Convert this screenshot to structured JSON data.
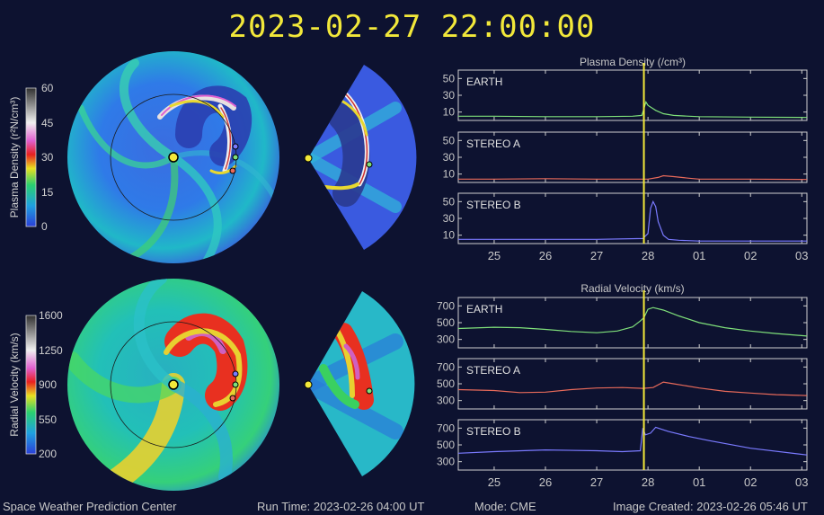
{
  "header": {
    "timestamp": "2023-02-27  22:00:00"
  },
  "footer": {
    "org": "Space Weather Prediction Center",
    "run_time": "Run Time: 2023-02-26 04:00 UT",
    "mode": "Mode: CME",
    "image_created": "Image Created: 2023-02-26 05:46 UT"
  },
  "colors": {
    "earth": "#7fe07a",
    "stereo_a": "#e86a5a",
    "stereo_b": "#7a7aff",
    "marker": "#f2e83a",
    "frame": "#cfcfcf"
  },
  "colorbars": [
    {
      "label": "Plasma Density (r²N/cm³)",
      "ticks": [
        "60",
        "45",
        "30",
        "15",
        "0"
      ],
      "min": 0,
      "max": 60
    },
    {
      "label": "Radial Velocity (km/s)",
      "ticks": [
        "1600",
        "1250",
        "900",
        "550",
        "200"
      ],
      "min": 200,
      "max": 1600
    }
  ],
  "chart_data": [
    {
      "type": "line",
      "title": "Plasma Density (/cm³)",
      "x_ticks": [
        "25",
        "26",
        "27",
        "28",
        "01",
        "02",
        "03"
      ],
      "x_tick_values": [
        25,
        26,
        27,
        28,
        29,
        30,
        31
      ],
      "xlim": [
        24.3,
        31.1
      ],
      "current_time": 27.92,
      "panels": [
        {
          "name": "EARTH",
          "color": "#7fe07a",
          "yticks": [
            "50",
            "30",
            "10"
          ],
          "ytick_values": [
            50,
            30,
            10
          ],
          "ylim": [
            0,
            60
          ],
          "x": [
            24.3,
            25,
            26,
            27,
            27.7,
            27.88,
            27.92,
            27.96,
            28.0,
            28.05,
            28.15,
            28.3,
            28.5,
            28.8,
            29,
            30,
            31.1
          ],
          "y": [
            5,
            5,
            4.5,
            4.5,
            5,
            6,
            14,
            22,
            18,
            16,
            12,
            8,
            6,
            5,
            4.5,
            4,
            3.5
          ]
        },
        {
          "name": "STEREO A",
          "color": "#e86a5a",
          "yticks": [
            "50",
            "30",
            "10"
          ],
          "ytick_values": [
            50,
            30,
            10
          ],
          "ylim": [
            0,
            60
          ],
          "x": [
            24.3,
            25,
            26,
            27,
            27.8,
            28.0,
            28.2,
            28.3,
            28.5,
            28.8,
            29,
            30,
            31.1
          ],
          "y": [
            4,
            4,
            4.5,
            4,
            4,
            4,
            6,
            8,
            7,
            5,
            4,
            4,
            3.5
          ]
        },
        {
          "name": "STEREO B",
          "color": "#7a7aff",
          "yticks": [
            "50",
            "30",
            "10"
          ],
          "ytick_values": [
            50,
            30,
            10
          ],
          "ylim": [
            0,
            60
          ],
          "x": [
            24.3,
            25,
            26,
            27,
            27.9,
            28.0,
            28.05,
            28.1,
            28.15,
            28.2,
            28.3,
            28.4,
            28.6,
            29,
            30,
            31.1
          ],
          "y": [
            5,
            5,
            5,
            5,
            6,
            12,
            42,
            50,
            44,
            26,
            10,
            5,
            4,
            3,
            3,
            3
          ]
        }
      ]
    },
    {
      "type": "line",
      "title": "Radial Velocity (km/s)",
      "x_ticks": [
        "25",
        "26",
        "27",
        "28",
        "01",
        "02",
        "03"
      ],
      "x_tick_values": [
        25,
        26,
        27,
        28,
        29,
        30,
        31
      ],
      "xlim": [
        24.3,
        31.1
      ],
      "current_time": 27.92,
      "panels": [
        {
          "name": "EARTH",
          "color": "#7fe07a",
          "yticks": [
            "700",
            "500",
            "300"
          ],
          "ytick_values": [
            700,
            500,
            300
          ],
          "ylim": [
            200,
            800
          ],
          "x": [
            24.3,
            25,
            25.5,
            26,
            26.5,
            27,
            27.4,
            27.7,
            27.85,
            27.92,
            28.0,
            28.1,
            28.3,
            28.6,
            29,
            29.5,
            30,
            30.5,
            31.1
          ],
          "y": [
            430,
            445,
            440,
            420,
            395,
            380,
            400,
            450,
            520,
            560,
            660,
            680,
            650,
            580,
            500,
            440,
            400,
            370,
            340
          ]
        },
        {
          "name": "STEREO A",
          "color": "#e86a5a",
          "yticks": [
            "700",
            "500",
            "300"
          ],
          "ytick_values": [
            700,
            500,
            300
          ],
          "ylim": [
            200,
            800
          ],
          "x": [
            24.3,
            25,
            25.5,
            26,
            26.5,
            27,
            27.5,
            27.9,
            28.1,
            28.3,
            28.5,
            29,
            29.5,
            30,
            30.5,
            31.1
          ],
          "y": [
            430,
            420,
            395,
            400,
            430,
            450,
            455,
            445,
            455,
            520,
            500,
            450,
            410,
            390,
            370,
            360
          ]
        },
        {
          "name": "STEREO B",
          "color": "#7a7aff",
          "yticks": [
            "700",
            "500",
            "300"
          ],
          "ytick_values": [
            700,
            500,
            300
          ],
          "ylim": [
            200,
            800
          ],
          "x": [
            24.3,
            25,
            26,
            27,
            27.5,
            27.85,
            27.9,
            27.95,
            28.05,
            28.15,
            28.25,
            28.4,
            28.8,
            29.2,
            30,
            31.1
          ],
          "y": [
            400,
            420,
            440,
            430,
            420,
            430,
            700,
            620,
            640,
            710,
            690,
            660,
            600,
            550,
            460,
            380
          ]
        }
      ]
    }
  ]
}
